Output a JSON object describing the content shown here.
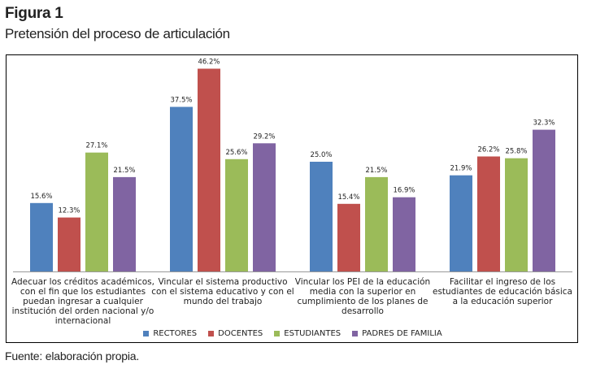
{
  "figure": {
    "title": "Figura 1",
    "subtitle": "Pretensión del proceso de articulación",
    "source": "Fuente: elaboración propia."
  },
  "chart_data": {
    "type": "bar",
    "title": "",
    "xlabel": "",
    "ylabel": "",
    "ylim": [
      0,
      50
    ],
    "grid": false,
    "legend_position": "bottom",
    "categories": [
      "Adecuar los créditos académicos, con el fin que los estudiantes puedan ingresar a cualquier institución del orden nacional y/o internacional",
      "Vincular el sistema productivo con el sistema educativo y con el mundo del trabajo",
      "Vincular los PEI de la educación media con la superior en cumplimiento de los planes de desarrollo",
      "Facilitar el ingreso de los estudiantes de educación básica a la educación superior"
    ],
    "series": [
      {
        "name": "RECTORES",
        "color": "#4F81BD",
        "values": [
          15.6,
          37.5,
          25.0,
          21.9
        ],
        "labels": [
          "15.6%",
          "37.5%",
          "25.0%",
          "21.9%"
        ]
      },
      {
        "name": "DOCENTES",
        "color": "#C0504D",
        "values": [
          12.3,
          46.2,
          15.4,
          26.2
        ],
        "labels": [
          "12.3%",
          "46.2%",
          "15.4%",
          "26.2%"
        ]
      },
      {
        "name": "ESTUDIANTES",
        "color": "#9BBB59",
        "values": [
          27.1,
          25.6,
          21.5,
          25.8
        ],
        "labels": [
          "27.1%",
          "25.6%",
          "21.5%",
          "25.8%"
        ]
      },
      {
        "name": "PADRES DE FAMILIA",
        "color": "#8064A2",
        "values": [
          21.5,
          29.2,
          16.9,
          32.3
        ],
        "labels": [
          "21.5%",
          "29.2%",
          "16.9%",
          "32.3%"
        ]
      }
    ]
  }
}
